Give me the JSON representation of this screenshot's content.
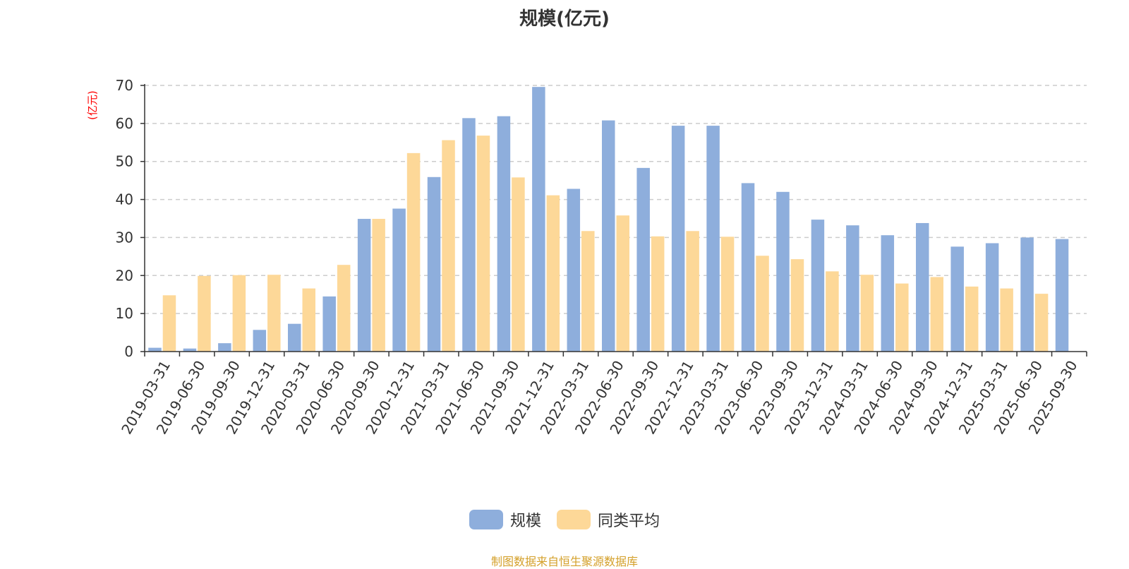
{
  "chart_data": {
    "type": "bar",
    "title": "规模(亿元)",
    "ylabel": "(亿元)",
    "ylim": [
      0,
      70
    ],
    "yticks": [
      0,
      10,
      20,
      30,
      40,
      50,
      60,
      70
    ],
    "grid": true,
    "legend_position": "bottom-center",
    "categories": [
      "2019-03-31",
      "2019-06-30",
      "2019-09-30",
      "2019-12-31",
      "2020-03-31",
      "2020-06-30",
      "2020-09-30",
      "2020-12-31",
      "2021-03-31",
      "2021-06-30",
      "2021-09-30",
      "2021-12-31",
      "2022-03-31",
      "2022-06-30",
      "2022-09-30",
      "2022-12-31",
      "2023-03-31",
      "2023-06-30",
      "2023-09-30",
      "2023-12-31",
      "2024-03-31",
      "2024-06-30",
      "2024-09-30",
      "2024-12-31",
      "2025-03-31",
      "2025-06-30",
      "2025-09-30"
    ],
    "series": [
      {
        "name": "规模",
        "color": "#8eaedc",
        "values": [
          1.0,
          0.8,
          2.2,
          5.7,
          7.3,
          14.5,
          34.9,
          37.6,
          45.9,
          61.4,
          61.9,
          69.6,
          42.8,
          60.8,
          48.3,
          59.4,
          59.4,
          44.3,
          42.0,
          34.7,
          33.2,
          30.6,
          33.8,
          27.6,
          28.5,
          30.0,
          29.6
        ]
      },
      {
        "name": "同类平均",
        "color": "#fdd898",
        "values": [
          14.8,
          19.9,
          20.1,
          20.2,
          16.6,
          22.8,
          34.9,
          52.2,
          55.6,
          56.8,
          45.8,
          41.1,
          31.7,
          35.8,
          30.3,
          31.7,
          30.2,
          25.2,
          24.3,
          21.1,
          20.2,
          17.9,
          19.6,
          17.1,
          16.6,
          15.2,
          null
        ]
      }
    ]
  },
  "source_text": "制图数据来自恒生聚源数据库",
  "colors": {
    "title": "#333333",
    "ylabel": "#ff0000",
    "axis": "#333333",
    "grid": "#cccccc",
    "source": "#d4a02a"
  }
}
